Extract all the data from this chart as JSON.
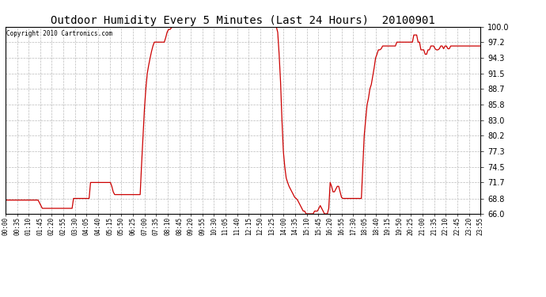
{
  "title": "Outdoor Humidity Every 5 Minutes (Last 24 Hours)  20100901",
  "copyright": "Copyright 2010 Cartronics.com",
  "line_color": "#cc0000",
  "background_color": "#ffffff",
  "grid_color": "#aaaaaa",
  "ylim": [
    66.0,
    100.0
  ],
  "yticks": [
    66.0,
    68.8,
    71.7,
    74.5,
    77.3,
    80.2,
    83.0,
    85.8,
    88.7,
    91.5,
    94.3,
    97.2,
    100.0
  ],
  "xtick_labels": [
    "00:00",
    "00:35",
    "01:10",
    "01:45",
    "02:20",
    "02:55",
    "03:30",
    "04:05",
    "04:40",
    "05:15",
    "05:50",
    "06:25",
    "07:00",
    "07:35",
    "08:10",
    "08:45",
    "09:20",
    "09:55",
    "10:30",
    "11:05",
    "11:40",
    "12:15",
    "12:50",
    "13:25",
    "14:00",
    "14:35",
    "15:10",
    "15:45",
    "16:20",
    "16:55",
    "17:30",
    "18:05",
    "18:40",
    "19:15",
    "19:50",
    "20:25",
    "21:00",
    "21:35",
    "22:10",
    "22:45",
    "23:20",
    "23:55"
  ],
  "n_points": 288,
  "humidity_values": [
    68.5,
    68.5,
    68.5,
    68.5,
    68.5,
    68.5,
    68.5,
    68.5,
    68.5,
    68.5,
    68.5,
    68.5,
    68.5,
    68.5,
    68.5,
    68.5,
    68.5,
    68.5,
    68.5,
    68.5,
    68.5,
    68.5,
    68.5,
    68.5,
    68.0,
    67.5,
    67.0,
    67.0,
    67.0,
    67.0,
    67.0,
    67.0,
    67.0,
    67.0,
    67.0,
    67.0,
    67.0,
    67.0,
    67.0,
    67.0,
    67.0,
    67.0,
    67.0,
    67.0,
    67.0,
    67.0,
    67.0,
    67.0,
    68.8,
    68.8,
    68.8,
    68.8,
    68.8,
    68.8,
    68.8,
    68.8,
    68.8,
    68.8,
    68.8,
    68.8,
    71.7,
    71.7,
    71.7,
    71.7,
    71.7,
    71.7,
    71.7,
    71.7,
    71.7,
    71.7,
    71.7,
    71.7,
    71.7,
    71.7,
    71.7,
    71.0,
    70.0,
    69.5,
    69.5,
    69.5,
    69.5,
    69.5,
    69.5,
    69.5,
    69.5,
    69.5,
    69.5,
    69.5,
    69.5,
    69.5,
    69.5,
    69.5,
    69.5,
    69.5,
    69.5,
    69.5,
    75.0,
    80.0,
    85.0,
    88.7,
    91.5,
    93.0,
    94.3,
    95.5,
    96.5,
    97.2,
    97.2,
    97.2,
    97.2,
    97.2,
    97.2,
    97.2,
    97.2,
    98.0,
    99.0,
    99.5,
    99.5,
    99.8,
    100.0,
    100.0,
    100.0,
    100.0,
    100.0,
    100.0,
    100.0,
    100.0,
    100.0,
    100.0,
    100.0,
    100.0,
    100.0,
    100.0,
    100.0,
    100.0,
    100.0,
    100.0,
    100.0,
    100.0,
    100.0,
    100.0,
    100.0,
    100.0,
    100.0,
    100.0,
    100.0,
    100.0,
    100.0,
    100.0,
    100.0,
    100.0,
    100.0,
    100.0,
    100.0,
    100.0,
    100.0,
    100.0,
    100.0,
    100.0,
    100.0,
    100.0,
    100.0,
    100.0,
    100.0,
    100.0,
    100.0,
    100.0,
    100.0,
    100.0,
    100.0,
    100.0,
    100.0,
    100.0,
    100.0,
    100.0,
    100.0,
    100.0,
    100.0,
    100.0,
    100.0,
    100.0,
    100.0,
    100.0,
    100.0,
    100.0,
    100.0,
    100.0,
    100.0,
    100.0,
    100.0,
    100.0,
    100.0,
    100.0,
    99.0,
    95.0,
    90.0,
    83.0,
    77.3,
    74.5,
    72.5,
    71.7,
    71.0,
    70.5,
    70.0,
    69.5,
    69.0,
    68.8,
    68.5,
    68.0,
    67.5,
    67.0,
    66.5,
    66.5,
    66.0,
    66.0,
    66.0,
    66.0,
    66.0,
    66.0,
    66.5,
    66.5,
    66.5,
    67.0,
    67.5,
    67.0,
    66.5,
    66.0,
    66.0,
    66.0,
    67.0,
    71.7,
    71.0,
    70.0,
    70.0,
    70.5,
    71.0,
    71.0,
    70.0,
    69.0,
    68.8,
    68.8,
    68.8,
    68.8,
    68.8,
    68.8,
    68.8,
    68.8,
    68.8,
    68.8,
    68.8,
    68.8,
    68.8,
    68.8,
    74.5,
    80.2,
    83.0,
    85.8,
    87.0,
    88.7,
    89.5,
    91.0,
    92.5,
    94.3,
    95.0,
    95.8,
    95.8,
    96.0,
    96.5,
    96.5,
    96.5,
    96.5,
    96.5,
    96.5,
    96.5,
    96.5,
    96.5,
    96.5,
    97.2,
    97.2,
    97.2,
    97.2,
    97.2,
    97.2,
    97.2,
    97.2,
    97.2,
    97.2,
    97.2,
    97.2,
    98.5,
    98.5,
    98.5,
    97.2,
    97.2,
    95.8,
    95.8,
    95.8,
    95.0,
    95.0,
    95.8,
    95.8,
    96.5,
    96.5,
    96.5,
    96.0,
    95.8,
    95.8,
    96.0,
    96.5,
    96.5,
    96.0,
    96.5,
    96.5,
    96.0,
    96.0,
    96.5,
    96.5,
    96.5,
    96.5,
    96.5,
    96.5,
    96.5,
    96.5,
    96.5,
    96.5,
    96.5,
    96.5,
    96.5,
    96.5,
    96.5,
    96.5,
    96.5,
    96.5,
    96.5,
    96.5,
    96.5,
    96.5
  ]
}
